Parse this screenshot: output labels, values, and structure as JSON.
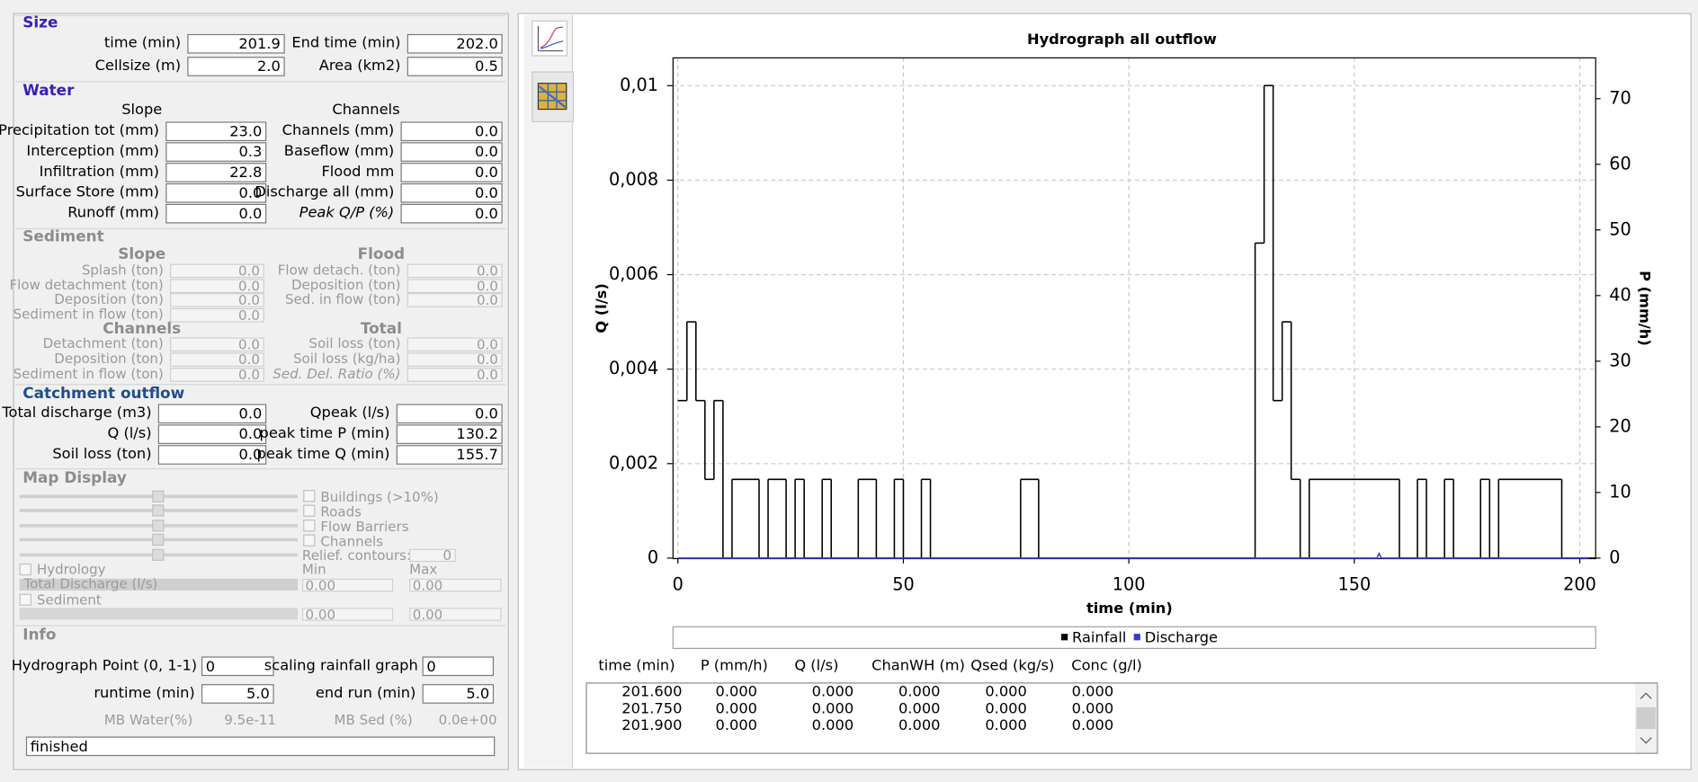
{
  "panel": {
    "size": {
      "title": "Size",
      "rows": [
        [
          "time (min)",
          "201.9",
          "End time (min)",
          "202.0"
        ],
        [
          "Cellsize (m)",
          "2.0",
          "Area (km2)",
          "0.5"
        ]
      ]
    },
    "water": {
      "title": "Water",
      "headers": [
        "Slope",
        "Channels"
      ],
      "rows": [
        [
          "Precipitation tot (mm)",
          "23.0",
          "Channels (mm)",
          "0.0"
        ],
        [
          "Interception (mm)",
          "0.3",
          "Baseflow (mm)",
          "0.0"
        ],
        [
          "Infiltration (mm)",
          "22.8",
          "Flood mm",
          "0.0"
        ],
        [
          "Surface Store (mm)",
          "0.0",
          "Discharge all (mm)",
          "0.0"
        ],
        [
          "Runoff (mm)",
          "0.0",
          "Peak Q/P (%)",
          "0.0"
        ]
      ]
    },
    "sediment": {
      "title": "Sediment",
      "groups": [
        {
          "headers": [
            "Slope",
            "Flood"
          ],
          "rows": [
            [
              "Splash (ton)",
              "0.0",
              "Flow detach. (ton)",
              "0.0"
            ],
            [
              "Flow detachment (ton)",
              "0.0",
              "Deposition (ton)",
              "0.0"
            ],
            [
              "Deposition (ton)",
              "0.0",
              "Sed. in flow (ton)",
              "0.0"
            ],
            [
              "Sediment in flow (ton)",
              "0.0"
            ]
          ]
        },
        {
          "headers": [
            "Channels",
            "Total"
          ],
          "rows": [
            [
              "Detachment (ton)",
              "0.0",
              "Soil loss (ton)",
              "0.0"
            ],
            [
              "Deposition (ton)",
              "0.0",
              "Soil loss (kg/ha)",
              "0.0"
            ],
            [
              "Sediment in flow (ton)",
              "0.0",
              "Sed. Del. Ratio  (%)",
              "0.0"
            ]
          ]
        }
      ]
    },
    "catchment": {
      "title": "Catchment outflow",
      "rows": [
        [
          "Total discharge (m3)",
          "0.0",
          "Qpeak (l/s)",
          "0.0"
        ],
        [
          "Q (l/s)",
          "0.0",
          "peak time P (min)",
          "130.2"
        ],
        [
          "Soil loss (ton)",
          "0.0",
          "peak time Q (min)",
          "155.7"
        ]
      ]
    },
    "map_display": {
      "title": "Map Display",
      "checkboxes": [
        "Buildings (>10%)",
        "Roads",
        "Flow Barriers",
        "Channels"
      ],
      "relief_label": "Relief. contours:",
      "relief_value": "0",
      "hydrology": "Hydrology",
      "min": "Min",
      "max": "Max",
      "discharge_select": "Total Discharge (l/s)",
      "sediment": "Sediment",
      "spin_values": [
        "0.00",
        "0.00",
        "0.00",
        "0.00"
      ]
    },
    "info": {
      "title": "Info",
      "hydrograph_point": "Hydrograph Point (0, 1-1)",
      "hydrograph_point_value": "0",
      "scaling": "scaling rainfall graph",
      "scaling_value": "0",
      "runtime": "runtime (min)",
      "runtime_value": "5.0",
      "end_run": "end run (min)",
      "end_run_value": "5.0",
      "mb_water": "MB Water(%)",
      "mb_water_value": "9.5e-11",
      "mb_sed": "MB Sed (%)",
      "mb_sed_value": "0.0e+00",
      "status": "finished"
    }
  },
  "chart_data": {
    "type": "line",
    "step": true,
    "title": "Hydrograph all outflow",
    "x_label": "time (min)",
    "y_label": "Q (l/s)",
    "y2_label": "P (mm/h)",
    "xlim": [
      -1.2,
      203.4
    ],
    "xticks": [
      0,
      50,
      100,
      150,
      200
    ],
    "ylim": [
      0,
      0.0106
    ],
    "yticks": [
      0,
      {
        "value": 0.002,
        "label": "0,002"
      },
      {
        "value": 0.004,
        "label": "0,004"
      },
      {
        "value": 0.006,
        "label": "0,006"
      },
      {
        "value": 0.008,
        "label": "0,008"
      },
      {
        "value": 0.01,
        "label": "0,01"
      }
    ],
    "y2lim": [
      0,
      76.3
    ],
    "y2ticks": [
      0,
      10,
      20,
      30,
      40,
      50,
      60,
      70
    ],
    "grid": true,
    "series": [
      {
        "name": "Rainfall",
        "color": "#000000",
        "axis": "y2",
        "x": [
          0,
          2,
          4,
          6,
          8,
          10,
          12,
          18,
          20,
          24,
          26,
          28,
          32,
          34,
          40,
          44,
          48,
          50,
          54,
          56,
          76,
          80,
          128,
          130,
          132,
          134,
          136,
          138,
          140,
          160,
          164,
          166,
          170,
          172,
          178,
          180,
          182,
          196,
          202
        ],
        "values": [
          24,
          36,
          24,
          12,
          24,
          0,
          12,
          0,
          12,
          0,
          12,
          0,
          12,
          0,
          12,
          0,
          12,
          0,
          12,
          0,
          12,
          0,
          48,
          72,
          24,
          36,
          12,
          0,
          12,
          0,
          12,
          0,
          12,
          0,
          12,
          0,
          12,
          0,
          0
        ]
      },
      {
        "name": "Discharge",
        "color": "#3a3acc",
        "x": [
          0,
          155,
          155.5,
          156,
          202
        ],
        "values": [
          0,
          0,
          0.0001,
          0,
          0
        ]
      }
    ]
  },
  "table": {
    "headers": [
      "time (min)",
      "P (mm/h)",
      "Q (l/s)",
      "ChanWH (m)",
      "Qsed (kg/s)",
      "Conc (g/l)"
    ],
    "rows": [
      [
        "201.600",
        "0.000",
        "0.000",
        "0.000",
        "0.000",
        "0.000"
      ],
      [
        "201.750",
        "0.000",
        "0.000",
        "0.000",
        "0.000",
        "0.000"
      ],
      [
        "201.900",
        "0.000",
        "0.000",
        "0.000",
        "0.000",
        "0.000"
      ]
    ]
  }
}
